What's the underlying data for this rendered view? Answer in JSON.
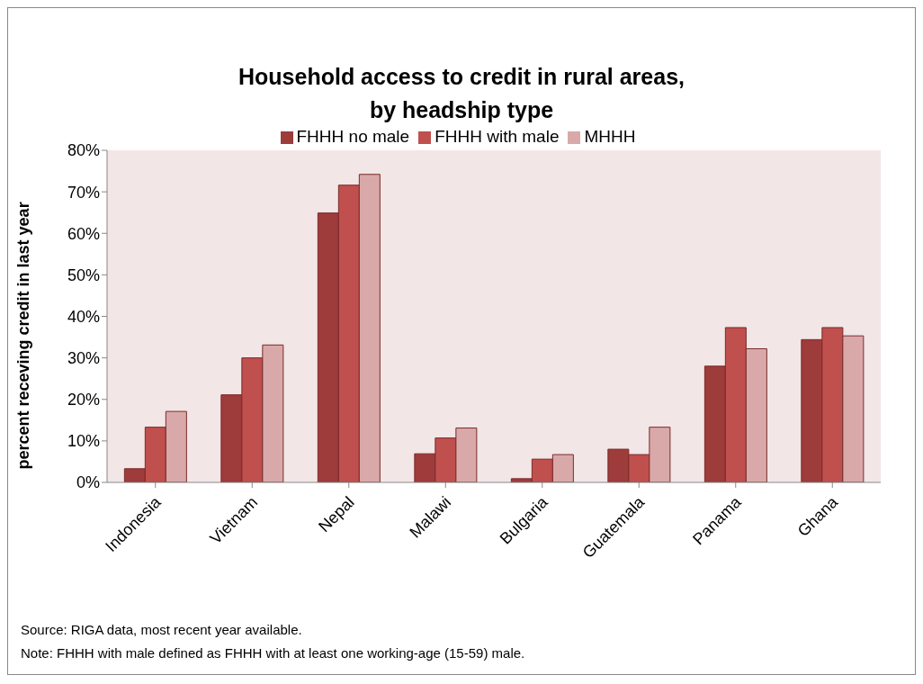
{
  "chart_data": {
    "type": "bar",
    "title": "Household access to credit in rural areas,\nby headship type",
    "ylabel": "percent receving credit in last year",
    "categories": [
      "Indonesia",
      "Vietnam",
      "Nepal",
      "Malawi",
      "Bulgaria",
      "Guatemala",
      "Panama",
      "Ghana"
    ],
    "series": [
      {
        "name": "FHHH no male",
        "color": "#9e3b3b",
        "values": [
          3.3,
          21.1,
          64.9,
          6.9,
          0.9,
          8,
          28,
          34.4
        ]
      },
      {
        "name": "FHHH with male",
        "color": "#c0504d",
        "values": [
          13.3,
          30,
          71.6,
          10.7,
          5.6,
          6.7,
          37.3,
          37.3
        ]
      },
      {
        "name": "MHHH",
        "color": "#d9a9a9",
        "values": [
          17.1,
          33.1,
          74.2,
          13.1,
          6.7,
          13.3,
          32.2,
          35.3
        ]
      }
    ],
    "ylim": [
      0,
      80
    ],
    "yticks": [
      {
        "value": 0,
        "label": "0%"
      },
      {
        "value": 10,
        "label": "10%"
      },
      {
        "value": 20,
        "label": "20%"
      },
      {
        "value": 30,
        "label": "30%"
      },
      {
        "value": 40,
        "label": "40%"
      },
      {
        "value": 50,
        "label": "50%"
      },
      {
        "value": 60,
        "label": "60%"
      },
      {
        "value": 70,
        "label": "70%"
      },
      {
        "value": 80,
        "label": "80%"
      }
    ],
    "legend": "top",
    "annotations": [
      "Source: RIGA data, most recent year available.",
      "Note: FHHH with male defined as FHHH with at least one working-age (15-59) male."
    ]
  }
}
